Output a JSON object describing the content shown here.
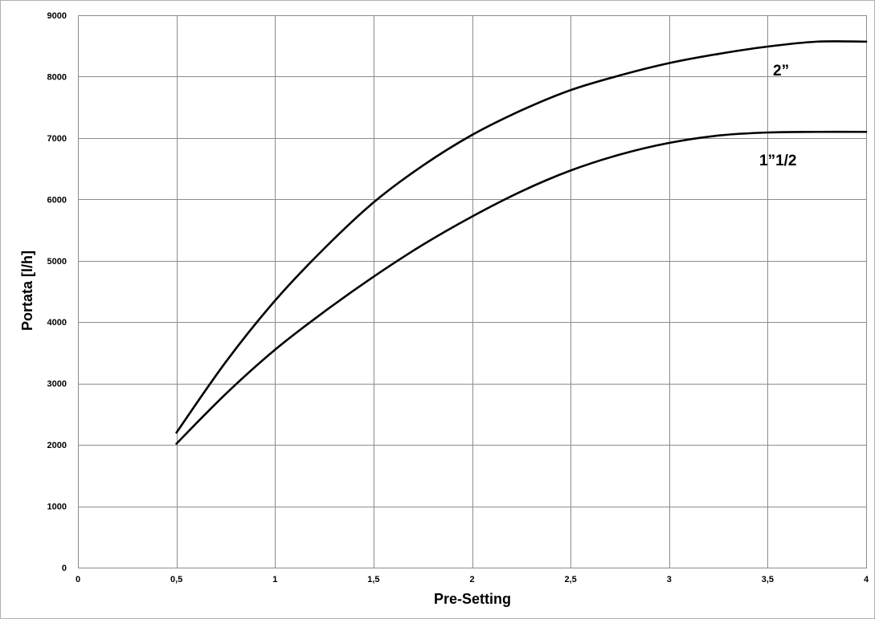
{
  "chart_data": {
    "type": "line",
    "title": "",
    "xlabel": "Pre-Setting",
    "ylabel": "Portata [l/h]",
    "xlim": [
      0,
      4
    ],
    "ylim": [
      0,
      9000
    ],
    "grid": true,
    "x_ticks": [
      0,
      0.5,
      1,
      1.5,
      2,
      2.5,
      3,
      3.5,
      4
    ],
    "x_tick_labels": [
      "0",
      "0,5",
      "1",
      "1,5",
      "2",
      "2,5",
      "3",
      "3,5",
      "4"
    ],
    "y_ticks": [
      0,
      1000,
      2000,
      3000,
      4000,
      5000,
      6000,
      7000,
      8000,
      9000
    ],
    "y_tick_labels": [
      "0",
      "1000",
      "2000",
      "3000",
      "4000",
      "5000",
      "6000",
      "7000",
      "8000",
      "9000"
    ],
    "series": [
      {
        "name": "2”",
        "x": [
          0.5,
          0.75,
          1,
          1.25,
          1.5,
          1.75,
          2,
          2.25,
          2.5,
          2.75,
          3,
          3.25,
          3.5,
          3.75,
          4
        ],
        "y": [
          2200,
          3350,
          4350,
          5200,
          5950,
          6550,
          7050,
          7450,
          7780,
          8020,
          8220,
          8370,
          8490,
          8570,
          8570
        ]
      },
      {
        "name": "1”1/2",
        "x": [
          0.5,
          0.75,
          1,
          1.25,
          1.5,
          1.75,
          2,
          2.25,
          2.5,
          2.75,
          3,
          3.25,
          3.5,
          3.75,
          4
        ],
        "y": [
          2020,
          2830,
          3550,
          4170,
          4740,
          5260,
          5720,
          6130,
          6470,
          6730,
          6920,
          7040,
          7090,
          7100,
          7100
        ]
      }
    ]
  }
}
